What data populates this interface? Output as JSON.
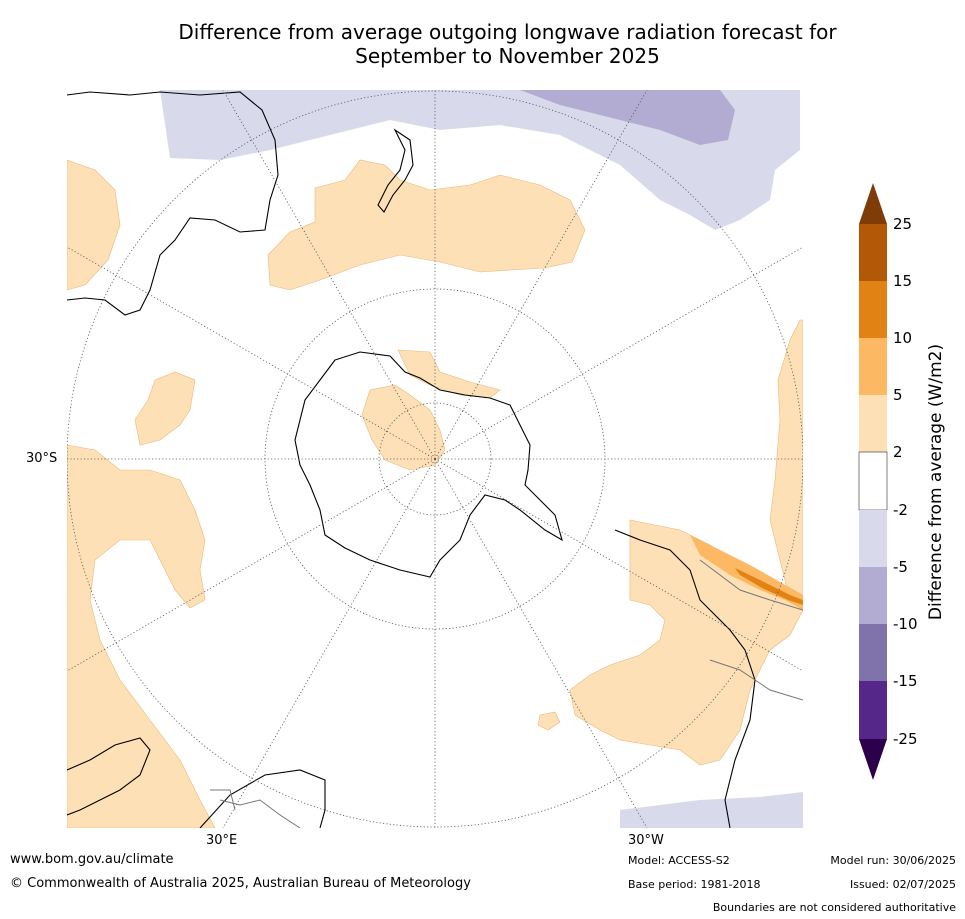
{
  "title": {
    "line1": "Difference from average outgoing longwave radiation forecast for",
    "line2": "September to November 2025"
  },
  "map": {
    "projection": "south polar stereographic",
    "coordinate_labels": {
      "left_lat": "30°S",
      "bottom_lon_left": "30°E",
      "bottom_lon_right": "30°W"
    }
  },
  "legend": {
    "title": "Difference from average (W/m2)",
    "ticks": [
      "25",
      "15",
      "10",
      "5",
      "2",
      "-2",
      "-5",
      "-10",
      "-15",
      "-25"
    ],
    "colors": {
      "above_25": "#7f3b08",
      "15_25": "#b35806",
      "10_15": "#e08214",
      "5_10": "#fdb863",
      "2_5": "#fee0b6",
      "neutral": "#ffffff",
      "neg2_neg5": "#d8daeb",
      "neg5_neg10": "#b2abd2",
      "neg10_neg15": "#8073ac",
      "neg15_neg25": "#542788",
      "below_neg25": "#2d004b"
    }
  },
  "footer": {
    "website": "www.bom.gov.au/climate",
    "copyright": "© Commonwealth of Australia 2025, Australian Bureau of Meteorology",
    "model": "Model: ACCESS-S2",
    "base_period": "Base period: 1981-2018",
    "model_run": "Model run: 30/06/2025",
    "issued": "Issued: 02/07/2025",
    "disclaimer": "Boundaries are not considered authoritative"
  }
}
